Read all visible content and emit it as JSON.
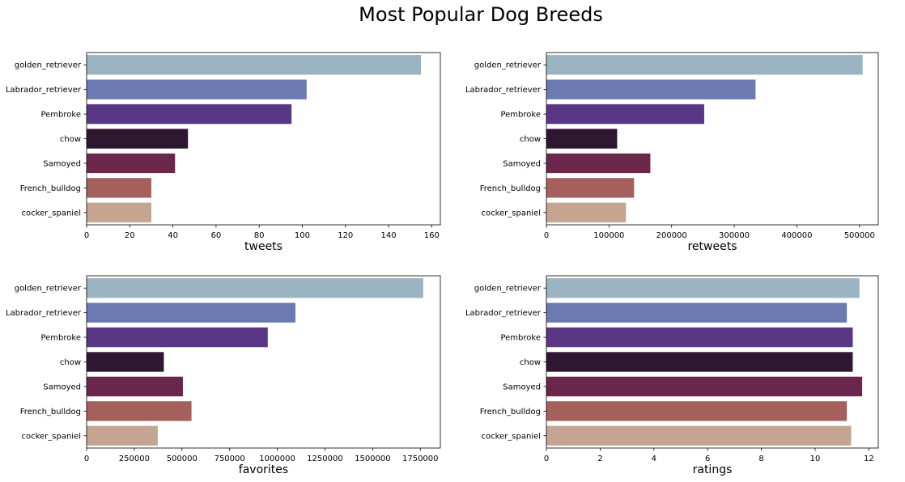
{
  "figure": {
    "title": "Most Popular Dog Breeds",
    "palette": [
      "#9ab4c2",
      "#6b7bb1",
      "#5a3784",
      "#2e1731",
      "#6a264b",
      "#a6605c",
      "#c5a492"
    ]
  },
  "chart_data": [
    {
      "type": "bar",
      "orientation": "horizontal",
      "categories": [
        "golden_retriever",
        "Labrador_retriever",
        "Pembroke",
        "chow",
        "Samoyed",
        "French_bulldog",
        "cocker_spaniel"
      ],
      "values": [
        155,
        102,
        95,
        47,
        41,
        30,
        30
      ],
      "xlabel": "tweets",
      "ylabel": "",
      "xlim": [
        0,
        164
      ],
      "xticks": [
        0,
        20,
        40,
        60,
        80,
        100,
        120,
        140,
        160
      ],
      "grid": false
    },
    {
      "type": "bar",
      "orientation": "horizontal",
      "categories": [
        "golden_retriever",
        "Labrador_retriever",
        "Pembroke",
        "chow",
        "Samoyed",
        "French_bulldog",
        "cocker_spaniel"
      ],
      "values": [
        505000,
        334000,
        252000,
        113000,
        166000,
        140000,
        127000
      ],
      "xlabel": "retweets",
      "ylabel": "",
      "xlim": [
        0,
        530000
      ],
      "xticks": [
        0,
        100000,
        200000,
        300000,
        400000,
        500000
      ],
      "grid": false
    },
    {
      "type": "bar",
      "orientation": "horizontal",
      "categories": [
        "golden_retriever",
        "Labrador_retriever",
        "Pembroke",
        "chow",
        "Samoyed",
        "French_bulldog",
        "cocker_spaniel"
      ],
      "values": [
        1765000,
        1095000,
        950000,
        405000,
        505000,
        550000,
        373000
      ],
      "xlabel": "favorites",
      "ylabel": "",
      "xlim": [
        0,
        1855000
      ],
      "xticks": [
        0,
        250000,
        500000,
        750000,
        1000000,
        1250000,
        1500000,
        1750000
      ],
      "grid": false
    },
    {
      "type": "bar",
      "orientation": "horizontal",
      "categories": [
        "golden_retriever",
        "Labrador_retriever",
        "Pembroke",
        "chow",
        "Samoyed",
        "French_bulldog",
        "cocker_spaniel"
      ],
      "values": [
        11.65,
        11.18,
        11.4,
        11.4,
        11.75,
        11.18,
        11.34
      ],
      "xlabel": "ratings",
      "ylabel": "",
      "xlim": [
        0,
        12.35
      ],
      "xticks": [
        0,
        2,
        4,
        6,
        8,
        10,
        12
      ],
      "grid": false
    }
  ]
}
